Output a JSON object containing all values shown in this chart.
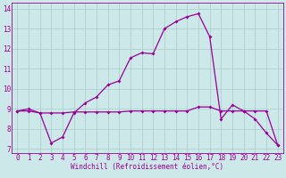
{
  "xlabel": "Windchill (Refroidissement éolien,°C)",
  "bg_color": "#cce8e8",
  "line_color": "#990099",
  "grid_color": "#aacccc",
  "series1_x": [
    0,
    1,
    2,
    3,
    4,
    5,
    6,
    7,
    8,
    9,
    10,
    11,
    12,
    13,
    14,
    15,
    16,
    17,
    18,
    19,
    20,
    21,
    22,
    23
  ],
  "series1_y": [
    8.9,
    9.0,
    8.8,
    7.3,
    7.6,
    8.8,
    9.3,
    9.6,
    10.2,
    10.4,
    11.55,
    11.8,
    11.75,
    13.0,
    13.35,
    13.6,
    13.75,
    12.6,
    8.5,
    9.2,
    8.9,
    8.5,
    7.8,
    7.2
  ],
  "series2_x": [
    0,
    1,
    2,
    3,
    4,
    5,
    6,
    7,
    8,
    9,
    10,
    11,
    12,
    13,
    14,
    15,
    16,
    17,
    18,
    19,
    20,
    21,
    22,
    23
  ],
  "series2_y": [
    8.9,
    8.9,
    8.8,
    8.8,
    8.8,
    8.85,
    8.85,
    8.85,
    8.85,
    8.85,
    8.9,
    8.9,
    8.9,
    8.9,
    8.9,
    8.9,
    9.1,
    9.1,
    8.9,
    8.9,
    8.9,
    8.9,
    8.9,
    7.2
  ],
  "xlim": [
    -0.5,
    23.5
  ],
  "ylim": [
    6.8,
    14.3
  ],
  "yticks": [
    7,
    8,
    9,
    10,
    11,
    12,
    13,
    14
  ],
  "xticks": [
    0,
    1,
    2,
    3,
    4,
    5,
    6,
    7,
    8,
    9,
    10,
    11,
    12,
    13,
    14,
    15,
    16,
    17,
    18,
    19,
    20,
    21,
    22,
    23
  ],
  "tick_fontsize": 5.5,
  "xlabel_fontsize": 5.5,
  "marker_size": 2.0,
  "line_width": 0.9
}
